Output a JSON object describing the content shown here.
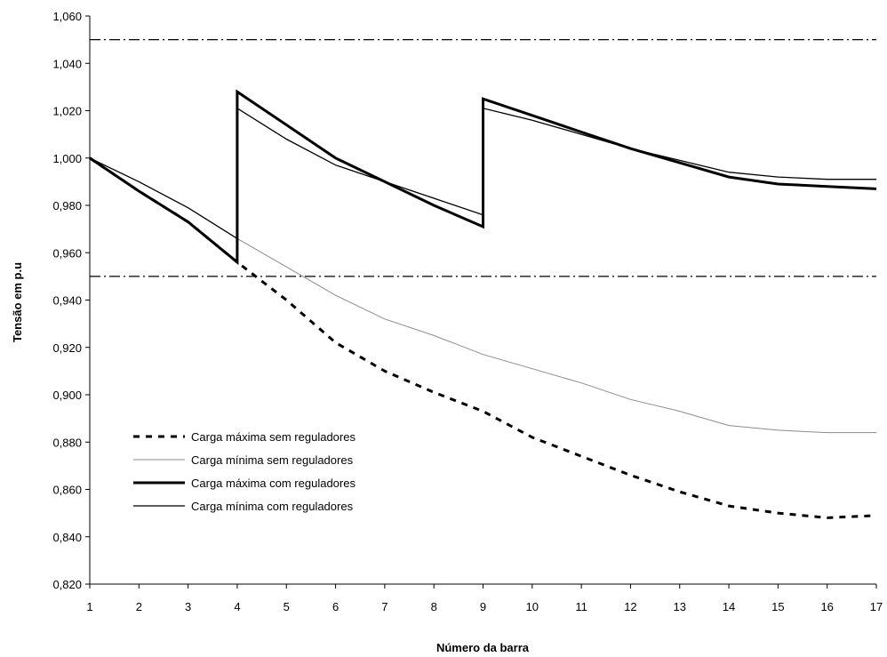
{
  "chart_data": {
    "type": "line",
    "title": "",
    "xlabel": "Número da barra",
    "ylabel": "Tensão em p.u",
    "xlim": [
      1,
      17
    ],
    "ylim": [
      0.82,
      1.06
    ],
    "x_ticks": [
      "1",
      "2",
      "3",
      "4",
      "5",
      "6",
      "7",
      "8",
      "9",
      "10",
      "11",
      "12",
      "13",
      "14",
      "15",
      "16",
      "17"
    ],
    "y_ticks": [
      "0,820",
      "0,840",
      "0,860",
      "0,880",
      "0,900",
      "0,920",
      "0,940",
      "0,960",
      "0,980",
      "1,000",
      "1,020",
      "1,040",
      "1,060"
    ],
    "y_tick_values": [
      0.82,
      0.84,
      0.86,
      0.88,
      0.9,
      0.92,
      0.94,
      0.96,
      0.98,
      1.0,
      1.02,
      1.04,
      1.06
    ],
    "grid": false,
    "legend_position": "lower-left",
    "reference_lines": [
      {
        "y": 1.05,
        "style": "dash-dot"
      },
      {
        "y": 0.95,
        "style": "dash-dot"
      }
    ],
    "series": [
      {
        "name": "Carga máxima sem reguladores",
        "style": "dashed",
        "color": "#000000",
        "points": [
          [
            1,
            1.0
          ],
          [
            2,
            0.986
          ],
          [
            3,
            0.973
          ],
          [
            4,
            0.956
          ],
          [
            5,
            0.94
          ],
          [
            6,
            0.922
          ],
          [
            7,
            0.91
          ],
          [
            8,
            0.901
          ],
          [
            9,
            0.893
          ],
          [
            10,
            0.882
          ],
          [
            11,
            0.874
          ],
          [
            12,
            0.866
          ],
          [
            13,
            0.859
          ],
          [
            14,
            0.853
          ],
          [
            15,
            0.85
          ],
          [
            16,
            0.848
          ],
          [
            17,
            0.849
          ]
        ]
      },
      {
        "name": "Carga mínima sem reguladores",
        "style": "solid-thin-gray",
        "color": "#8c8c8c",
        "points": [
          [
            1,
            1.0
          ],
          [
            2,
            0.99
          ],
          [
            3,
            0.979
          ],
          [
            4,
            0.966
          ],
          [
            5,
            0.954
          ],
          [
            6,
            0.942
          ],
          [
            7,
            0.932
          ],
          [
            8,
            0.925
          ],
          [
            9,
            0.917
          ],
          [
            10,
            0.911
          ],
          [
            11,
            0.905
          ],
          [
            12,
            0.898
          ],
          [
            13,
            0.893
          ],
          [
            14,
            0.887
          ],
          [
            15,
            0.885
          ],
          [
            16,
            0.884
          ],
          [
            17,
            0.884
          ]
        ]
      },
      {
        "name": "Carga máxima com reguladores",
        "style": "solid-thick",
        "color": "#000000",
        "points": [
          [
            1,
            1.0
          ],
          [
            2,
            0.986
          ],
          [
            3,
            0.973
          ],
          [
            4,
            0.956
          ],
          [
            4,
            1.028
          ],
          [
            5,
            1.014
          ],
          [
            6,
            1.0
          ],
          [
            7,
            0.99
          ],
          [
            8,
            0.98
          ],
          [
            9,
            0.971
          ],
          [
            9,
            1.025
          ],
          [
            10,
            1.018
          ],
          [
            11,
            1.011
          ],
          [
            12,
            1.004
          ],
          [
            13,
            0.998
          ],
          [
            14,
            0.992
          ],
          [
            15,
            0.989
          ],
          [
            16,
            0.988
          ],
          [
            17,
            0.987
          ]
        ]
      },
      {
        "name": "Carga mínima com reguladores",
        "style": "solid-thin",
        "color": "#000000",
        "points": [
          [
            1,
            1.0
          ],
          [
            2,
            0.99
          ],
          [
            3,
            0.979
          ],
          [
            4,
            0.966
          ],
          [
            4,
            1.021
          ],
          [
            5,
            1.008
          ],
          [
            6,
            0.997
          ],
          [
            7,
            0.99
          ],
          [
            8,
            0.983
          ],
          [
            9,
            0.976
          ],
          [
            9,
            1.021
          ],
          [
            10,
            1.016
          ],
          [
            11,
            1.01
          ],
          [
            12,
            1.004
          ],
          [
            13,
            0.999
          ],
          [
            14,
            0.994
          ],
          [
            15,
            0.992
          ],
          [
            16,
            0.991
          ],
          [
            17,
            0.991
          ]
        ]
      }
    ]
  }
}
